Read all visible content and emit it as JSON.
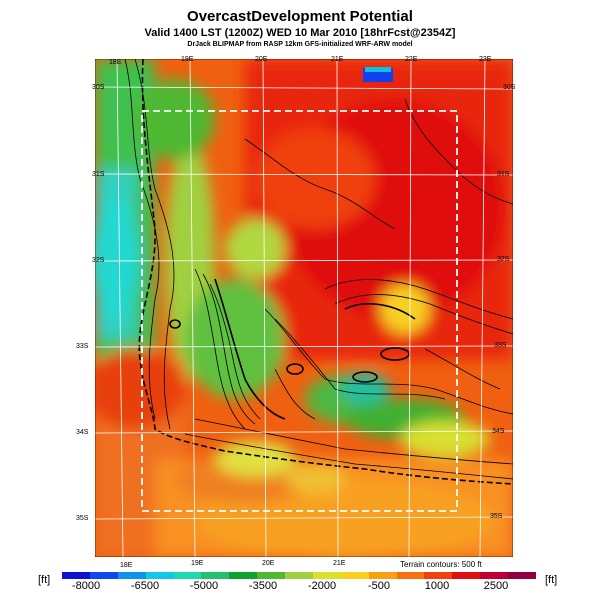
{
  "header": {
    "title": "OvercastDevelopment Potential",
    "subtitle": "Valid 1400 LST (1200Z) WED 10 Mar 2010 [18hrFcst@2354Z]",
    "credit": "DrJack BLIPMAP from RASP 12km GFS-initialized WRF-ARW model"
  },
  "map": {
    "lon_labels_top": [
      "18E",
      "19E",
      "20E",
      "21E",
      "22E",
      "23E"
    ],
    "lon_labels_bottom": [
      "18E",
      "19E",
      "20E",
      "21E"
    ],
    "lat_labels_left": [
      "30S",
      "31S",
      "32S",
      "33S",
      "34S",
      "35S"
    ],
    "lat_labels_right": [
      "30S",
      "31S",
      "32S",
      "33S",
      "34S",
      "35S"
    ],
    "terrain_note": "Terrain contours: 500 ft"
  },
  "colorbar": {
    "unit_left": "[ft]",
    "unit_right": "[ft]",
    "labels": [
      "-8000",
      "-6500",
      "-5000",
      "-3500",
      "-2000",
      "-500",
      "1000",
      "2500"
    ],
    "colors": [
      "#1010d0",
      "#1048f0",
      "#1090f0",
      "#10c8e8",
      "#20d8b0",
      "#20c070",
      "#10a030",
      "#50b830",
      "#a0d040",
      "#d8e030",
      "#f8d020",
      "#f8a010",
      "#f87010",
      "#f04010",
      "#e01010",
      "#c00030",
      "#900040"
    ]
  }
}
